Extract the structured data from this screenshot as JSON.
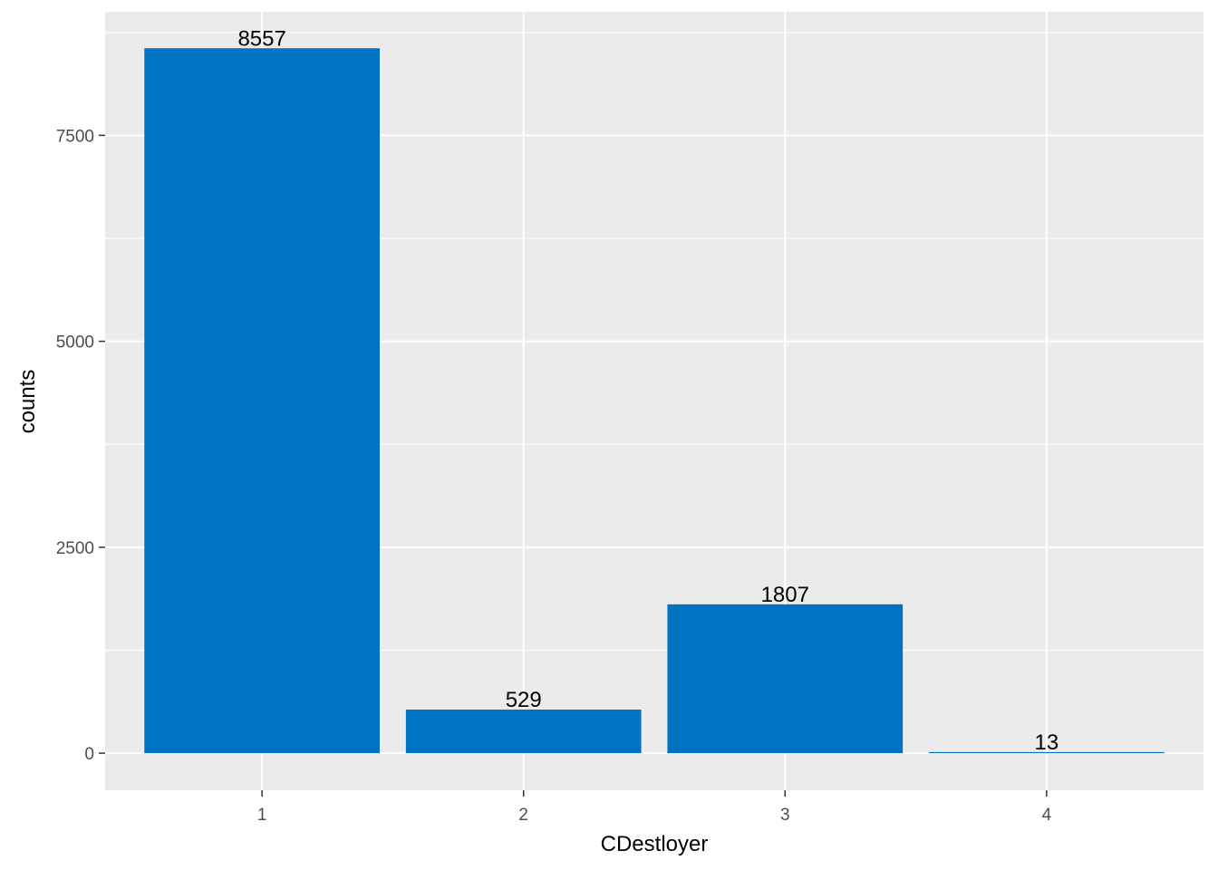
{
  "chart_data": {
    "type": "bar",
    "categories": [
      "1",
      "2",
      "3",
      "4"
    ],
    "values": [
      8557,
      529,
      1807,
      13
    ],
    "data_labels": [
      "8557",
      "529",
      "1807",
      "13"
    ],
    "xlabel": "CDestloyer",
    "ylabel": "counts",
    "ylim": [
      -450,
      9000
    ],
    "yticks": [
      0,
      2500,
      5000,
      7500
    ],
    "ytick_labels": [
      "0",
      "2500",
      "5000",
      "7500"
    ],
    "grid": true,
    "colors": {
      "bar": "#0072C2",
      "panel": "#EBEBEB",
      "grid": "#FFFFFF",
      "tick": "#333333"
    }
  }
}
